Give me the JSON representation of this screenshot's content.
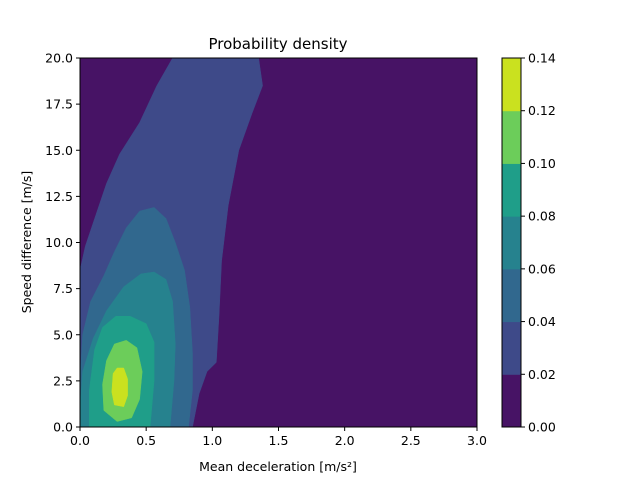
{
  "chart_data": {
    "type": "heatmap",
    "subtype": "filled-contour",
    "title": "Probability density",
    "xlabel": "Mean deceleration [m/s²]",
    "ylabel": "Speed difference [m/s]",
    "xlim": [
      0.0,
      3.0
    ],
    "ylim": [
      0.0,
      20.0
    ],
    "x_ticks": [
      "0.0",
      "0.5",
      "1.0",
      "1.5",
      "2.0",
      "2.5",
      "3.0"
    ],
    "y_ticks": [
      "0.0",
      "2.5",
      "5.0",
      "7.5",
      "10.0",
      "12.5",
      "15.0",
      "17.5",
      "20.0"
    ],
    "colorbar": {
      "min": 0.0,
      "max": 0.14,
      "ticks": [
        "0.00",
        "0.02",
        "0.04",
        "0.06",
        "0.08",
        "0.10",
        "0.12",
        "0.14"
      ],
      "colors": [
        "#471365",
        "#3e4a89",
        "#31688e",
        "#26828e",
        "#1f9e89",
        "#6ccd5a",
        "#cae11f"
      ]
    },
    "density_peak": {
      "x": 0.3,
      "y": 2.2,
      "value": 0.13
    },
    "levels": [
      {
        "range": [
          0.0,
          0.02
        ],
        "color": "#471365",
        "region": "background"
      },
      {
        "range": [
          0.02,
          0.04
        ],
        "color": "#3e4a89",
        "region": [
          [
            0.0,
            8.5
          ],
          [
            0.04,
            9.8
          ],
          [
            0.12,
            11.5
          ],
          [
            0.2,
            13.2
          ],
          [
            0.3,
            14.8
          ],
          [
            0.45,
            16.5
          ],
          [
            0.58,
            18.5
          ],
          [
            0.7,
            20.0
          ],
          [
            1.35,
            20.0
          ],
          [
            1.38,
            18.5
          ],
          [
            1.3,
            17.0
          ],
          [
            1.2,
            15.0
          ],
          [
            1.12,
            12.0
          ],
          [
            1.07,
            9.0
          ],
          [
            1.05,
            6.0
          ],
          [
            1.03,
            3.5
          ],
          [
            0.96,
            3.0
          ],
          [
            0.9,
            1.8
          ],
          [
            0.85,
            0.0
          ],
          [
            0.0,
            0.0
          ]
        ]
      },
      {
        "range": [
          0.04,
          0.06
        ],
        "color": "#31688e",
        "region": [
          [
            0.0,
            2.5
          ],
          [
            0.02,
            5.0
          ],
          [
            0.08,
            6.8
          ],
          [
            0.18,
            8.2
          ],
          [
            0.26,
            9.5
          ],
          [
            0.35,
            10.8
          ],
          [
            0.45,
            11.7
          ],
          [
            0.56,
            11.9
          ],
          [
            0.65,
            11.3
          ],
          [
            0.72,
            10.0
          ],
          [
            0.79,
            8.5
          ],
          [
            0.83,
            6.5
          ],
          [
            0.85,
            4.0
          ],
          [
            0.85,
            2.0
          ],
          [
            0.82,
            0.0
          ],
          [
            0.0,
            0.0
          ]
        ]
      },
      {
        "range": [
          0.06,
          0.08
        ],
        "color": "#26828e",
        "region": [
          [
            0.0,
            1.0
          ],
          [
            0.02,
            3.0
          ],
          [
            0.1,
            4.8
          ],
          [
            0.2,
            6.3
          ],
          [
            0.33,
            7.6
          ],
          [
            0.46,
            8.3
          ],
          [
            0.56,
            8.4
          ],
          [
            0.65,
            8.0
          ],
          [
            0.7,
            6.8
          ],
          [
            0.72,
            4.5
          ],
          [
            0.71,
            2.5
          ],
          [
            0.68,
            0.0
          ],
          [
            0.0,
            0.0
          ]
        ]
      },
      {
        "range": [
          0.08,
          0.1
        ],
        "color": "#1f9e89",
        "region": [
          [
            0.07,
            0.0
          ],
          [
            0.07,
            2.0
          ],
          [
            0.11,
            4.2
          ],
          [
            0.17,
            5.4
          ],
          [
            0.27,
            6.0
          ],
          [
            0.38,
            6.0
          ],
          [
            0.5,
            5.6
          ],
          [
            0.56,
            4.6
          ],
          [
            0.56,
            2.5
          ],
          [
            0.53,
            0.0
          ]
        ]
      },
      {
        "range": [
          0.1,
          0.12
        ],
        "color": "#6ccd5a",
        "region": [
          [
            0.18,
            0.9
          ],
          [
            0.17,
            2.3
          ],
          [
            0.2,
            3.6
          ],
          [
            0.26,
            4.5
          ],
          [
            0.35,
            4.7
          ],
          [
            0.43,
            4.3
          ],
          [
            0.47,
            3.0
          ],
          [
            0.45,
            1.5
          ],
          [
            0.39,
            0.5
          ],
          [
            0.28,
            0.3
          ]
        ]
      },
      {
        "range": [
          0.12,
          0.14
        ],
        "color": "#cae11f",
        "region": [
          [
            0.26,
            1.2
          ],
          [
            0.24,
            1.9
          ],
          [
            0.25,
            2.9
          ],
          [
            0.28,
            3.2
          ],
          [
            0.33,
            3.2
          ],
          [
            0.36,
            2.6
          ],
          [
            0.36,
            1.7
          ],
          [
            0.33,
            1.1
          ]
        ]
      }
    ]
  }
}
